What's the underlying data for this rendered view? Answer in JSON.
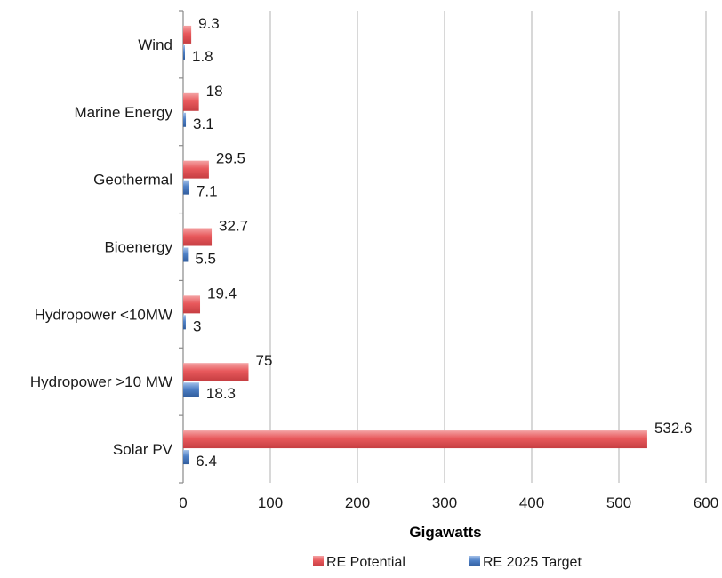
{
  "chart_data": {
    "type": "bar",
    "orientation": "horizontal",
    "categories": [
      "Wind",
      "Marine Energy",
      "Geothermal",
      "Bioenergy",
      "Hydropower <10MW",
      "Hydropower >10 MW",
      "Solar PV"
    ],
    "series": [
      {
        "name": "RE Potential",
        "color": "#e8595c",
        "values": [
          9.3,
          18,
          29.5,
          32.7,
          19.4,
          75,
          532.6
        ],
        "labels": [
          "9.3",
          "18",
          "29.5",
          "32.7",
          "19.4",
          "75",
          "532.6"
        ]
      },
      {
        "name": "RE 2025 Target",
        "color": "#4f81c7",
        "values": [
          1.8,
          3.1,
          7.1,
          5.5,
          3,
          18.3,
          6.4
        ],
        "labels": [
          "1.8",
          "3.1",
          "7.1",
          "5.5",
          "3",
          "18.3",
          "6.4"
        ]
      }
    ],
    "xlabel": "Gigawatts",
    "xlim": [
      0,
      600
    ],
    "xticks": [
      0,
      100,
      200,
      300,
      400,
      500,
      600
    ],
    "xtick_labels": [
      "0",
      "100",
      "200",
      "300",
      "400",
      "500",
      "600"
    ],
    "grid": "vertical",
    "legend": "bottom"
  }
}
